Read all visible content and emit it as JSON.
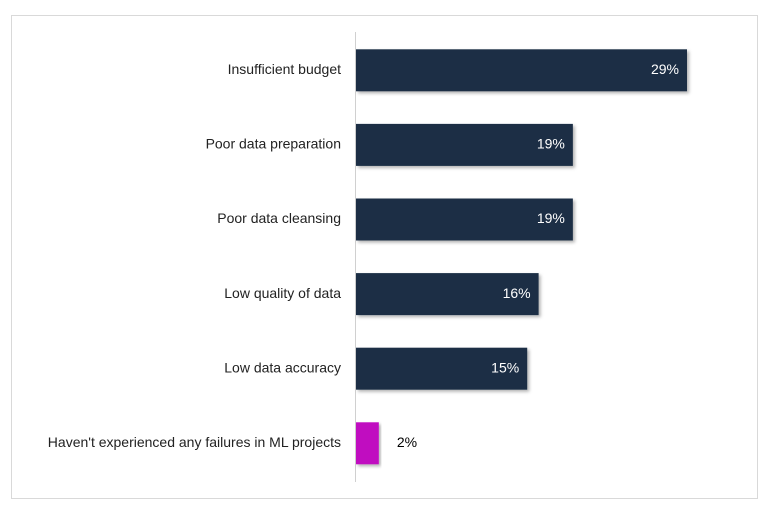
{
  "chart_data": {
    "type": "bar",
    "orientation": "horizontal",
    "categories": [
      "Insufficient budget",
      "Poor data preparation",
      "Poor data cleansing",
      "Low quality of data",
      "Low data accuracy",
      "Haven't experienced any failures in ML projects"
    ],
    "values": [
      29,
      19,
      19,
      16,
      15,
      2
    ],
    "value_labels": [
      "29%",
      "19%",
      "19%",
      "16%",
      "15%",
      "2%"
    ],
    "colors": [
      "#1c2e45",
      "#1c2e45",
      "#1c2e45",
      "#1c2e45",
      "#1c2e45",
      "#c010c0"
    ]
  }
}
